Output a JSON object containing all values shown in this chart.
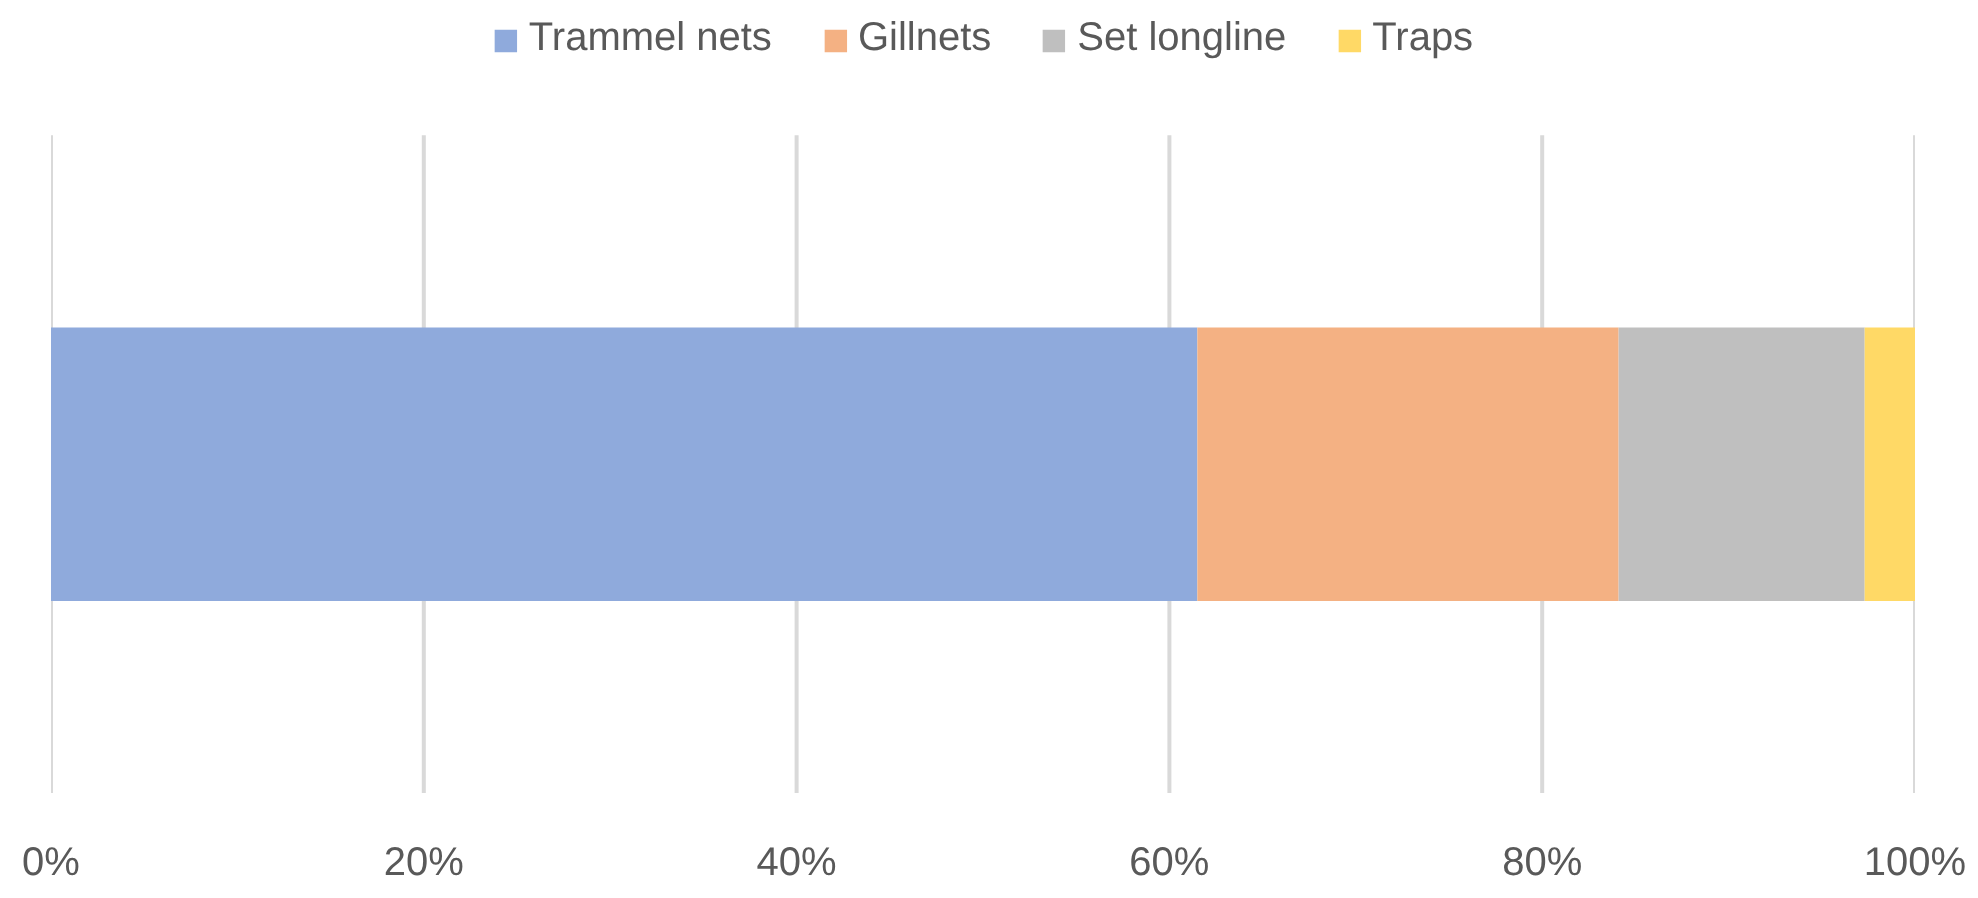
{
  "chart_data": {
    "type": "bar",
    "orientation": "horizontal",
    "stacked": true,
    "categories": [
      null
    ],
    "series": [
      {
        "name": "Trammel nets",
        "color": "#8faadc",
        "values": [
          61.5
        ]
      },
      {
        "name": "Gillnets",
        "color": "#f4b183",
        "values": [
          22.6
        ]
      },
      {
        "name": "Set longline",
        "color": "#bfbfbf",
        "values": [
          13.2
        ]
      },
      {
        "name": "Traps",
        "color": "#ffd966",
        "values": [
          2.7
        ]
      }
    ],
    "xlim": [
      0,
      100
    ],
    "xticks": [
      {
        "value": 0,
        "label": "0%"
      },
      {
        "value": 20,
        "label": "20%"
      },
      {
        "value": 40,
        "label": "40%"
      },
      {
        "value": 60,
        "label": "60%"
      },
      {
        "value": 80,
        "label": "80%"
      },
      {
        "value": 100,
        "label": "100%"
      }
    ],
    "grid": "x",
    "legend": "top",
    "tick_labels": "x"
  }
}
